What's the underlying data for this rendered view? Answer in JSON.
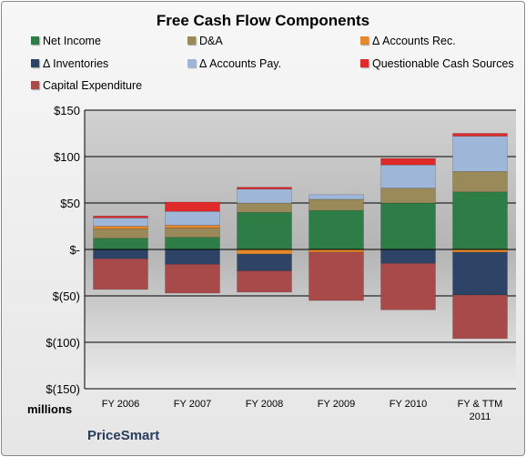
{
  "brand": "PriceSmart",
  "units": "millions",
  "chart_data": {
    "type": "bar",
    "stacked": true,
    "title": "Free Cash Flow Components",
    "categories": [
      "FY 2006",
      "FY 2007",
      "FY 2008",
      "FY 2009",
      "FY 2010",
      "FY & TTM 2011"
    ],
    "ylim": [
      -150,
      150
    ],
    "yticks": [
      -150,
      -100,
      -50,
      0,
      50,
      100,
      150
    ],
    "ytick_labels": [
      "$(150)",
      "$(100)",
      "$(50)",
      "$-",
      "$50",
      "$100",
      "$150"
    ],
    "xlabel": "",
    "ylabel": "",
    "grid": true,
    "legend_position": "top",
    "series": [
      {
        "name": "Net Income",
        "color": "#2e7d46",
        "values": [
          12,
          13,
          40,
          42,
          50,
          62
        ]
      },
      {
        "name": "D&A",
        "color": "#9a8a5a",
        "values": [
          10,
          10,
          10,
          12,
          16,
          22
        ]
      },
      {
        "name": "Δ Accounts Rec.",
        "color": "#e48a2a",
        "values": [
          3,
          3,
          -5,
          -3,
          0,
          -3
        ]
      },
      {
        "name": "Δ Inventories",
        "color": "#2d4466",
        "values": [
          -10,
          -16,
          -18,
          0,
          -15,
          -46
        ]
      },
      {
        "name": "Δ Accounts Pay.",
        "color": "#9eb6d8",
        "values": [
          9,
          15,
          15,
          5,
          25,
          38
        ]
      },
      {
        "name": "Questionable Cash Sources",
        "color": "#e02a2a",
        "values": [
          2,
          10,
          2,
          0,
          7,
          3
        ]
      },
      {
        "name": "Capital Expenditure",
        "color": "#a84a4a",
        "values": [
          -33,
          -31,
          -23,
          -52,
          -50,
          -47
        ]
      }
    ]
  }
}
